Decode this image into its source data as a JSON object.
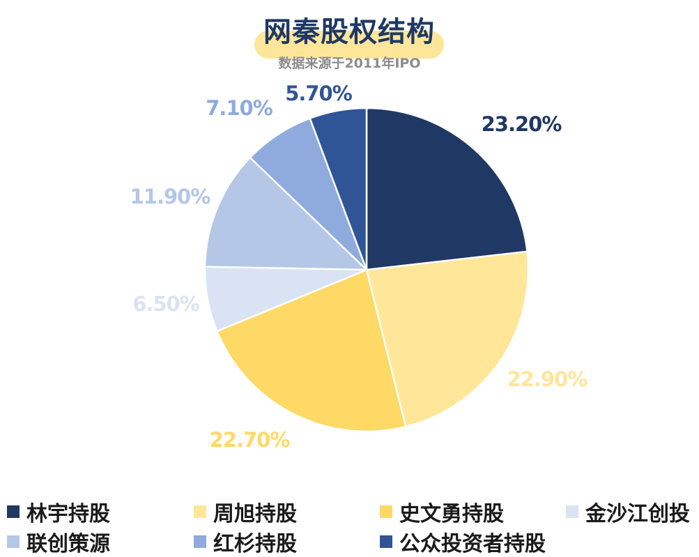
{
  "chart_data": {
    "type": "pie",
    "title": "网秦股权结构",
    "subtitle": "数据来源于2011年IPO",
    "slices": [
      {
        "name": "林宇持股",
        "value": 23.2,
        "label": "23.20%",
        "color": "#203864"
      },
      {
        "name": "周旭持股",
        "value": 22.9,
        "label": "22.90%",
        "color": "#ffe699"
      },
      {
        "name": "史文勇持股",
        "value": 22.7,
        "label": "22.70%",
        "color": "#ffd966"
      },
      {
        "name": "金沙江创投",
        "value": 6.5,
        "label": "6.50%",
        "color": "#dae3f3"
      },
      {
        "name": "联创策源",
        "value": 11.9,
        "label": "11.90%",
        "color": "#b4c7e7"
      },
      {
        "name": "红杉持股",
        "value": 7.1,
        "label": "7.10%",
        "color": "#8faadc"
      },
      {
        "name": "公众投资者持股",
        "value": 5.7,
        "label": "5.70%",
        "color": "#2f5597"
      }
    ],
    "start_angle": "12 o'clock",
    "direction": "clockwise",
    "legend_position": "bottom"
  }
}
